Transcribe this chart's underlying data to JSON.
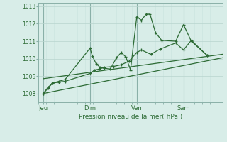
{
  "title": "",
  "xlabel": "Pression niveau de la mer( hPa )",
  "bg_color": "#d8ede8",
  "grid_color_minor": "#c8e4de",
  "grid_color_major": "#b8d4ce",
  "vline_color": "#8ab0a8",
  "line_color": "#2d6b35",
  "ylim": [
    1007.5,
    1013.2
  ],
  "yticks": [
    1008,
    1009,
    1010,
    1011,
    1012,
    1013
  ],
  "day_labels": [
    "Jeu",
    "Dim",
    "Ven",
    "Sam"
  ],
  "day_positions": [
    0.0,
    3.0,
    6.0,
    9.0
  ],
  "xlim": [
    -0.3,
    11.5
  ],
  "series1_x": [
    0.0,
    0.3,
    0.6,
    1.0,
    1.4,
    3.0,
    3.15,
    3.4,
    3.65,
    3.9,
    4.3,
    4.7,
    5.0,
    5.3,
    5.6,
    6.0,
    6.3,
    6.6,
    6.85,
    7.2,
    7.6,
    8.5,
    9.0,
    9.5,
    10.5
  ],
  "series1_y": [
    1008.0,
    1008.3,
    1008.6,
    1008.7,
    1008.8,
    1010.6,
    1010.15,
    1009.7,
    1009.5,
    1009.45,
    1009.4,
    1010.05,
    1010.35,
    1010.1,
    1009.35,
    1012.4,
    1012.2,
    1012.55,
    1012.55,
    1011.5,
    1011.05,
    1011.0,
    1011.95,
    1011.0,
    1010.2
  ],
  "series2_x": [
    0.0,
    0.3,
    0.6,
    1.0,
    1.4,
    3.0,
    3.3,
    3.6,
    3.9,
    4.5,
    5.0,
    5.5,
    6.0,
    6.3,
    6.9,
    7.5,
    8.5,
    9.0,
    9.5,
    10.5
  ],
  "series2_y": [
    1008.0,
    1008.35,
    1008.6,
    1008.65,
    1008.7,
    1009.15,
    1009.35,
    1009.4,
    1009.5,
    1009.55,
    1009.65,
    1009.85,
    1010.35,
    1010.5,
    1010.25,
    1010.55,
    1010.9,
    1010.5,
    1011.05,
    1010.2
  ],
  "series3_x": [
    0.0,
    11.5
  ],
  "series3_y": [
    1008.85,
    1010.25
  ],
  "series4_x": [
    0.0,
    11.5
  ],
  "series4_y": [
    1008.0,
    1010.05
  ]
}
